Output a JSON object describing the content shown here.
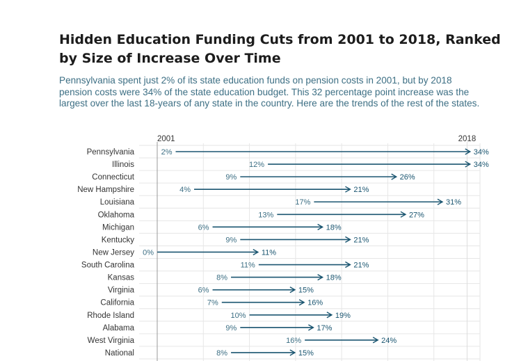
{
  "title": "Hidden Education Funding Cuts from 2001 to 2018, Ranked by Size of Increase Over Time",
  "subtitle": "Pennsylvania spent just 2% of its state education funds on pension costs in 2001, but by 2018 pension costs were 34% of the state education budget. This 32 percentage point increase was the largest over the last 18-years of any state in the country. Here are the trends of the rest of the states.",
  "colors": {
    "accent": "#1a5570",
    "label_start": "#3d6f84",
    "label_end": "#1a5570",
    "row_label": "#333333",
    "grid": "#e6e6e6"
  },
  "chart_data": {
    "type": "arrow-dumbbell",
    "start_label": "2001",
    "end_label": "2018",
    "value_suffix": "%",
    "xlim": [
      0,
      35
    ],
    "grid": true,
    "rows": [
      {
        "name": "Pennsylvania",
        "start": 2,
        "end": 34
      },
      {
        "name": "Illinois",
        "start": 12,
        "end": 34
      },
      {
        "name": "Connecticut",
        "start": 9,
        "end": 26
      },
      {
        "name": "New Hampshire",
        "start": 4,
        "end": 21
      },
      {
        "name": "Louisiana",
        "start": 17,
        "end": 31
      },
      {
        "name": "Oklahoma",
        "start": 13,
        "end": 27
      },
      {
        "name": "Michigan",
        "start": 6,
        "end": 18
      },
      {
        "name": "Kentucky",
        "start": 9,
        "end": 21
      },
      {
        "name": "New Jersey",
        "start": 0,
        "end": 11
      },
      {
        "name": "South Carolina",
        "start": 11,
        "end": 21
      },
      {
        "name": "Kansas",
        "start": 8,
        "end": 18
      },
      {
        "name": "Virginia",
        "start": 6,
        "end": 15
      },
      {
        "name": "California",
        "start": 7,
        "end": 16
      },
      {
        "name": "Rhode Island",
        "start": 10,
        "end": 19
      },
      {
        "name": "Alabama",
        "start": 9,
        "end": 17
      },
      {
        "name": "West Virginia",
        "start": 16,
        "end": 24
      },
      {
        "name": "National",
        "start": 8,
        "end": 15
      }
    ]
  }
}
